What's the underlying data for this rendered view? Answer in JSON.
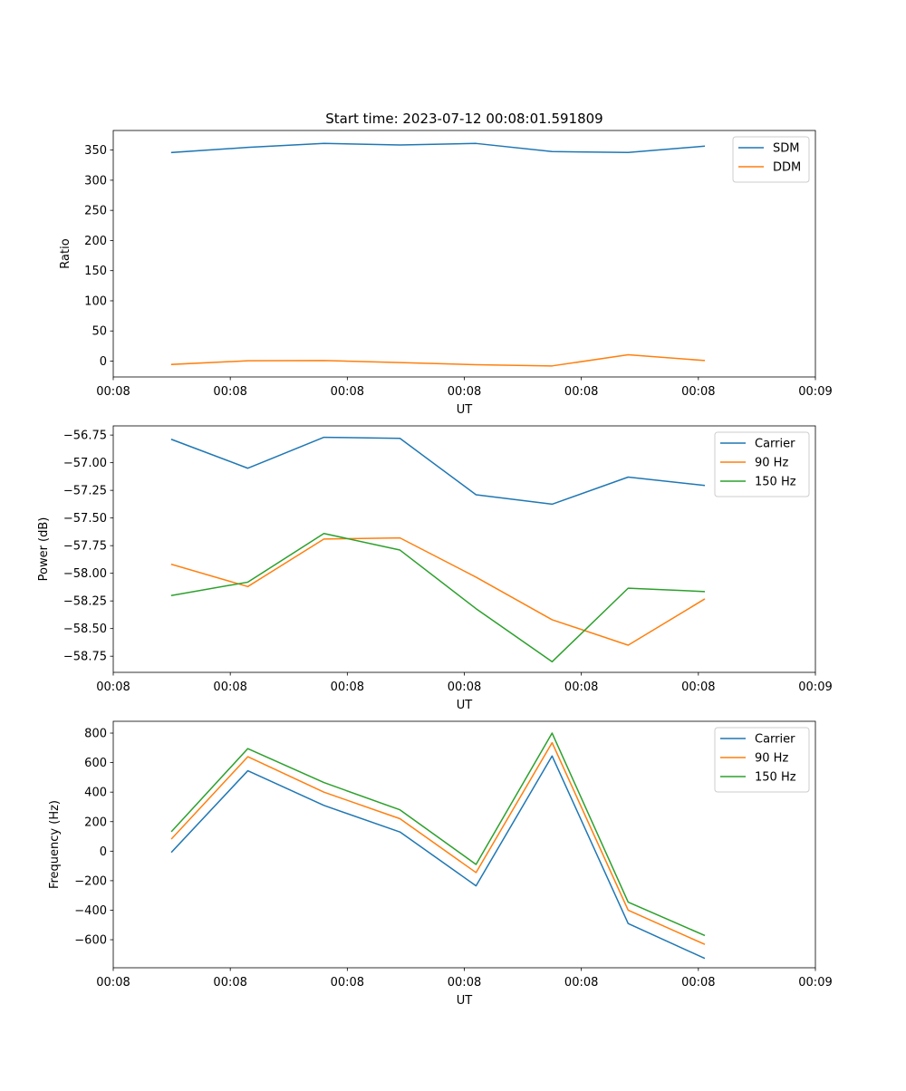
{
  "figure": {
    "title": "Start time: 2023-07-12 00:08:01.591809"
  },
  "chart_data": [
    {
      "type": "line",
      "xlabel": "UT",
      "ylabel": "Ratio",
      "xlim": [
        0,
        12
      ],
      "x": [
        1,
        2.3,
        3.6,
        4.9,
        6.2,
        7.5,
        8.8,
        10.1
      ],
      "xtick_positions": [
        0,
        2,
        4,
        6,
        8,
        10,
        12
      ],
      "xtick_labels": [
        "00:08",
        "00:08",
        "00:08",
        "00:08",
        "00:08",
        "00:08",
        "00:09"
      ],
      "ylim": [
        -26.3,
        382.5
      ],
      "yticks": [
        0,
        50,
        100,
        150,
        200,
        250,
        300,
        350
      ],
      "ytick_labels": [
        "0",
        "50",
        "100",
        "150",
        "200",
        "250",
        "300",
        "350"
      ],
      "legend_position": "top-right",
      "series": [
        {
          "name": "SDM",
          "color": "#1f77b4",
          "values": [
            346,
            354.5,
            361,
            358.5,
            361,
            347.5,
            346,
            356.5
          ]
        },
        {
          "name": "DDM",
          "color": "#ff7f0e",
          "values": [
            -5.5,
            0.5,
            1,
            -2.5,
            -6,
            -8,
            10.5,
            1
          ]
        }
      ]
    },
    {
      "type": "line",
      "xlabel": "UT",
      "ylabel": "Power (dB)",
      "xlim": [
        0,
        12
      ],
      "x": [
        1,
        2.3,
        3.6,
        4.9,
        6.2,
        7.5,
        8.8,
        10.1
      ],
      "xtick_positions": [
        0,
        2,
        4,
        6,
        8,
        10,
        12
      ],
      "xtick_labels": [
        "00:08",
        "00:08",
        "00:08",
        "00:08",
        "00:08",
        "00:08",
        "00:09"
      ],
      "ylim": [
        -58.896,
        -56.667
      ],
      "yticks": [
        -58.75,
        -58.5,
        -58.25,
        -58.0,
        -57.75,
        -57.5,
        -57.25,
        -57.0,
        -56.75
      ],
      "ytick_labels": [
        "−58.75",
        "−58.50",
        "−58.25",
        "−58.00",
        "−57.75",
        "−57.50",
        "−57.25",
        "−57.00",
        "−56.75"
      ],
      "legend_position": "top-right",
      "series": [
        {
          "name": "Carrier",
          "color": "#1f77b4",
          "values": [
            -56.79,
            -57.05,
            -56.77,
            -56.78,
            -57.29,
            -57.375,
            -57.13,
            -57.205
          ]
        },
        {
          "name": "90 Hz",
          "color": "#ff7f0e",
          "values": [
            -57.92,
            -58.12,
            -57.69,
            -57.68,
            -58.035,
            -58.42,
            -58.65,
            -58.235
          ]
        },
        {
          "name": "150 Hz",
          "color": "#2ca02c",
          "values": [
            -58.2,
            -58.08,
            -57.64,
            -57.79,
            -58.32,
            -58.8,
            -58.135,
            -58.165
          ]
        }
      ]
    },
    {
      "type": "line",
      "xlabel": "UT",
      "ylabel": "Frequency (Hz)",
      "xlim": [
        0,
        12
      ],
      "x": [
        1,
        2.3,
        3.6,
        4.9,
        6.2,
        7.5,
        8.8,
        10.1
      ],
      "xtick_positions": [
        0,
        2,
        4,
        6,
        8,
        10,
        12
      ],
      "xtick_labels": [
        "00:08",
        "00:08",
        "00:08",
        "00:08",
        "00:08",
        "00:08",
        "00:09"
      ],
      "ylim": [
        -790,
        880
      ],
      "yticks": [
        -600,
        -400,
        -200,
        0,
        200,
        400,
        600,
        800
      ],
      "ytick_labels": [
        "−600",
        "−400",
        "−200",
        "0",
        "200",
        "400",
        "600",
        "800"
      ],
      "legend_position": "top-right",
      "series": [
        {
          "name": "Carrier",
          "color": "#1f77b4",
          "values": [
            -5,
            545,
            310,
            130,
            -235,
            645,
            -490,
            -725
          ]
        },
        {
          "name": "90 Hz",
          "color": "#ff7f0e",
          "values": [
            85,
            640,
            400,
            220,
            -145,
            735,
            -400,
            -630
          ]
        },
        {
          "name": "150 Hz",
          "color": "#2ca02c",
          "values": [
            135,
            695,
            465,
            280,
            -90,
            800,
            -345,
            -570
          ]
        }
      ]
    }
  ]
}
